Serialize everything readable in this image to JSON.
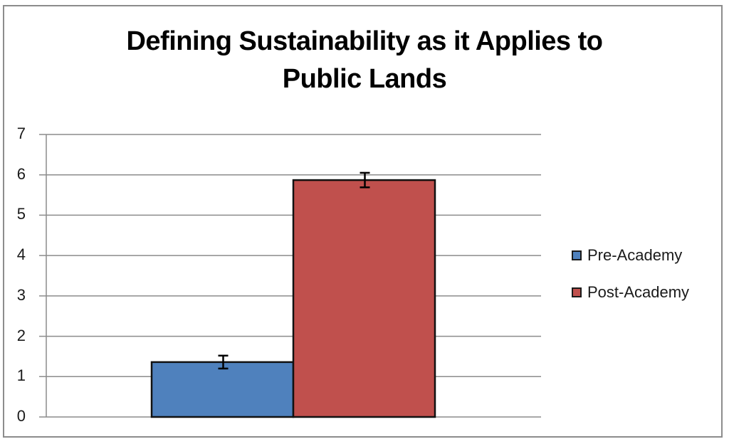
{
  "chart_data": {
    "type": "bar",
    "title": "Defining Sustainability as it Applies to Public Lands",
    "title_lines": [
      "Defining Sustainability as it Applies to",
      "Public Lands"
    ],
    "xlabel": "",
    "ylabel": "",
    "ylim": [
      0,
      7
    ],
    "yticks": [
      "0",
      "1",
      "2",
      "3",
      "4",
      "5",
      "6",
      "7"
    ],
    "grid": true,
    "legend_position": "right",
    "categories": [
      ""
    ],
    "series": [
      {
        "name": "Pre-Academy",
        "values": [
          1.36
        ],
        "error": [
          0.16
        ],
        "color": "#4f81bd"
      },
      {
        "name": "Post-Academy",
        "values": [
          5.87
        ],
        "error": [
          0.18
        ],
        "color": "#c0504d"
      }
    ]
  },
  "legend": {
    "items": [
      {
        "label": "Pre-Academy",
        "color": "#4f81bd"
      },
      {
        "label": "Post-Academy",
        "color": "#c0504d"
      }
    ]
  }
}
